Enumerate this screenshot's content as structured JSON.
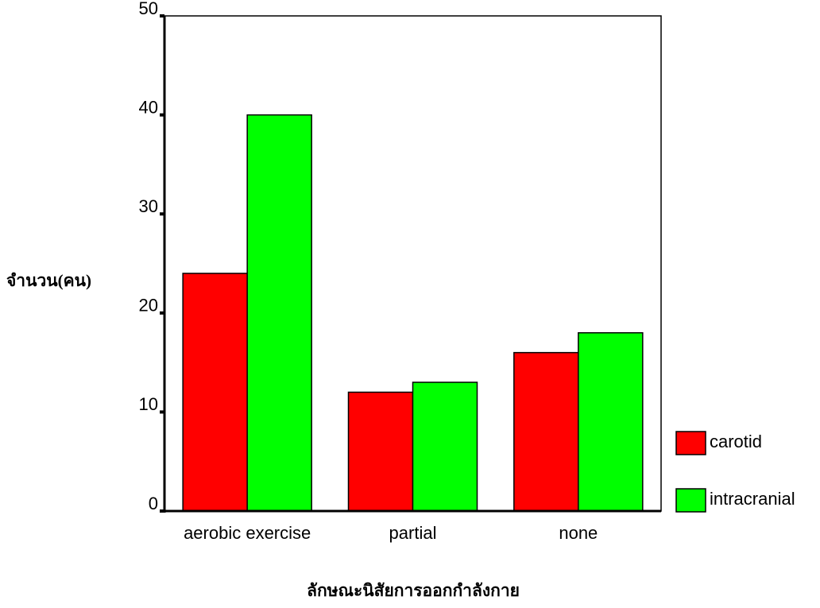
{
  "chart_data": {
    "type": "bar",
    "y_label": "จำนวน(คน)",
    "x_label": "ลักษณะนิสัยการออกกำลังกาย",
    "categories": [
      "aerobic exercise",
      "partial",
      "none"
    ],
    "series": [
      {
        "name": "carotid",
        "color": "#ff0000",
        "values": [
          24,
          12,
          16
        ]
      },
      {
        "name": "intracranial",
        "color": "#00ff00",
        "values": [
          40,
          13,
          18
        ]
      }
    ],
    "ylim": [
      0,
      50
    ],
    "yticks": [
      0,
      10,
      20,
      30,
      40,
      50
    ],
    "legend": "right"
  }
}
